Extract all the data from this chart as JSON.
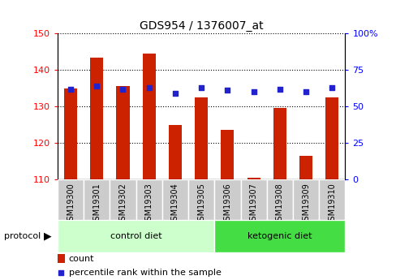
{
  "title": "GDS954 / 1376007_at",
  "samples": [
    "GSM19300",
    "GSM19301",
    "GSM19302",
    "GSM19303",
    "GSM19304",
    "GSM19305",
    "GSM19306",
    "GSM19307",
    "GSM19308",
    "GSM19309",
    "GSM19310"
  ],
  "counts": [
    135.0,
    143.5,
    135.5,
    144.5,
    125.0,
    132.5,
    123.5,
    110.5,
    129.5,
    116.5,
    132.5
  ],
  "percentile_ranks": [
    62,
    64,
    62,
    63,
    59,
    63,
    61,
    60,
    62,
    60,
    63
  ],
  "ylim_left": [
    110,
    150
  ],
  "ylim_right": [
    0,
    100
  ],
  "yticks_left": [
    110,
    120,
    130,
    140,
    150
  ],
  "yticks_right": [
    0,
    25,
    50,
    75,
    100
  ],
  "bar_color": "#cc2200",
  "dot_color": "#2222cc",
  "protocol_groups": [
    {
      "label": "control diet",
      "indices": [
        0,
        1,
        2,
        3,
        4,
        5
      ],
      "color": "#ccffcc"
    },
    {
      "label": "ketogenic diet",
      "indices": [
        6,
        7,
        8,
        9,
        10
      ],
      "color": "#44dd44"
    }
  ],
  "protocol_label": "protocol",
  "legend_count_label": "count",
  "legend_percentile_label": "percentile rank within the sample",
  "tick_bg_color": "#cccccc",
  "bar_bottom": 110,
  "fig_width": 4.89,
  "fig_height": 3.45,
  "dpi": 100
}
